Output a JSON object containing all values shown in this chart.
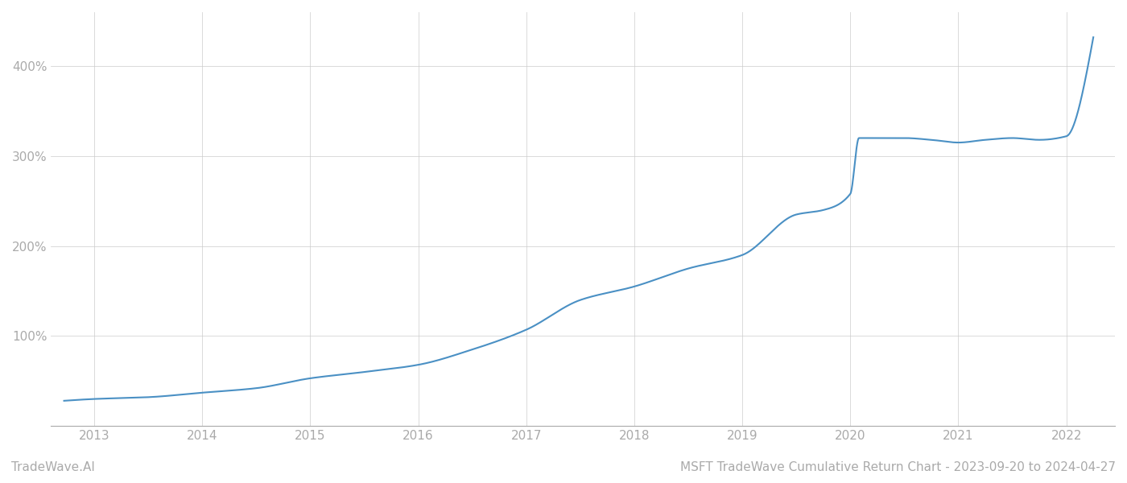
{
  "title": "MSFT TradeWave Cumulative Return Chart - 2023-09-20 to 2024-04-27",
  "watermark": "TradeWave.AI",
  "line_color": "#4a90c4",
  "background_color": "#ffffff",
  "grid_color": "#cccccc",
  "years": [
    2013,
    2014,
    2015,
    2016,
    2017,
    2018,
    2019,
    2020,
    2021,
    2022
  ],
  "key_x": [
    2012.72,
    2013.0,
    2013.5,
    2014.0,
    2014.5,
    2015.0,
    2015.5,
    2016.0,
    2016.5,
    2017.0,
    2017.5,
    2018.0,
    2018.5,
    2019.0,
    2019.5,
    2019.75,
    2020.0,
    2020.08,
    2020.5,
    2020.75,
    2021.0,
    2021.25,
    2021.5,
    2021.75,
    2022.0,
    2022.25
  ],
  "key_y": [
    28,
    30,
    32,
    37,
    42,
    53,
    60,
    68,
    85,
    107,
    140,
    155,
    175,
    190,
    235,
    240,
    258,
    320,
    320,
    318,
    315,
    318,
    320,
    318,
    322,
    432
  ],
  "yticks": [
    100,
    200,
    300,
    400
  ],
  "xlim": [
    2012.6,
    2022.45
  ],
  "ylim": [
    0,
    460
  ],
  "line_width": 1.5,
  "title_fontsize": 11,
  "tick_fontsize": 11,
  "watermark_fontsize": 11
}
